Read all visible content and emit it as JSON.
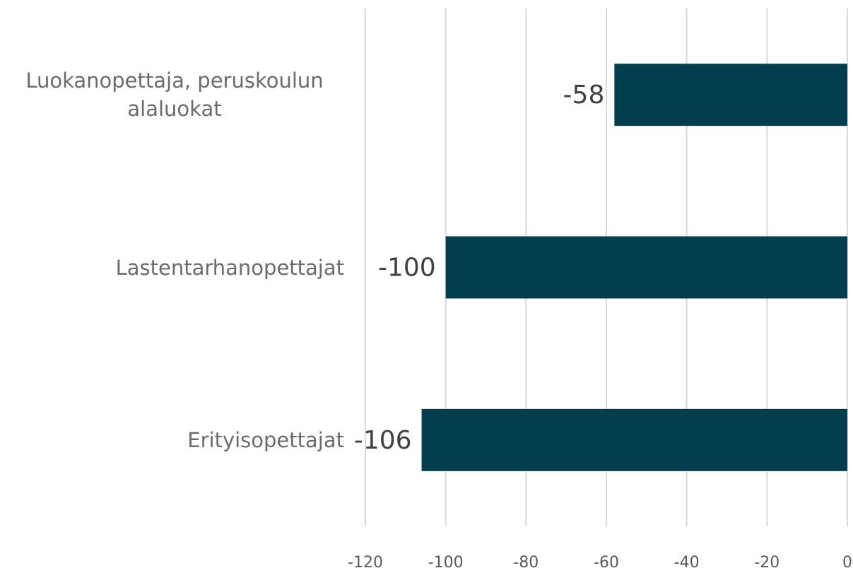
{
  "chart_data": {
    "type": "bar",
    "orientation": "horizontal",
    "categories": [
      "Luokanopettaja, peruskoulun alaluokat",
      "Lastentarhanopettajat",
      "Erityisopettajat"
    ],
    "values": [
      -58,
      -100,
      -106
    ],
    "color": "#023e4d",
    "xlim": [
      -120,
      0
    ],
    "xticks": [
      -120,
      -100,
      -80,
      -60,
      -40,
      -20,
      0
    ],
    "grid": true
  }
}
